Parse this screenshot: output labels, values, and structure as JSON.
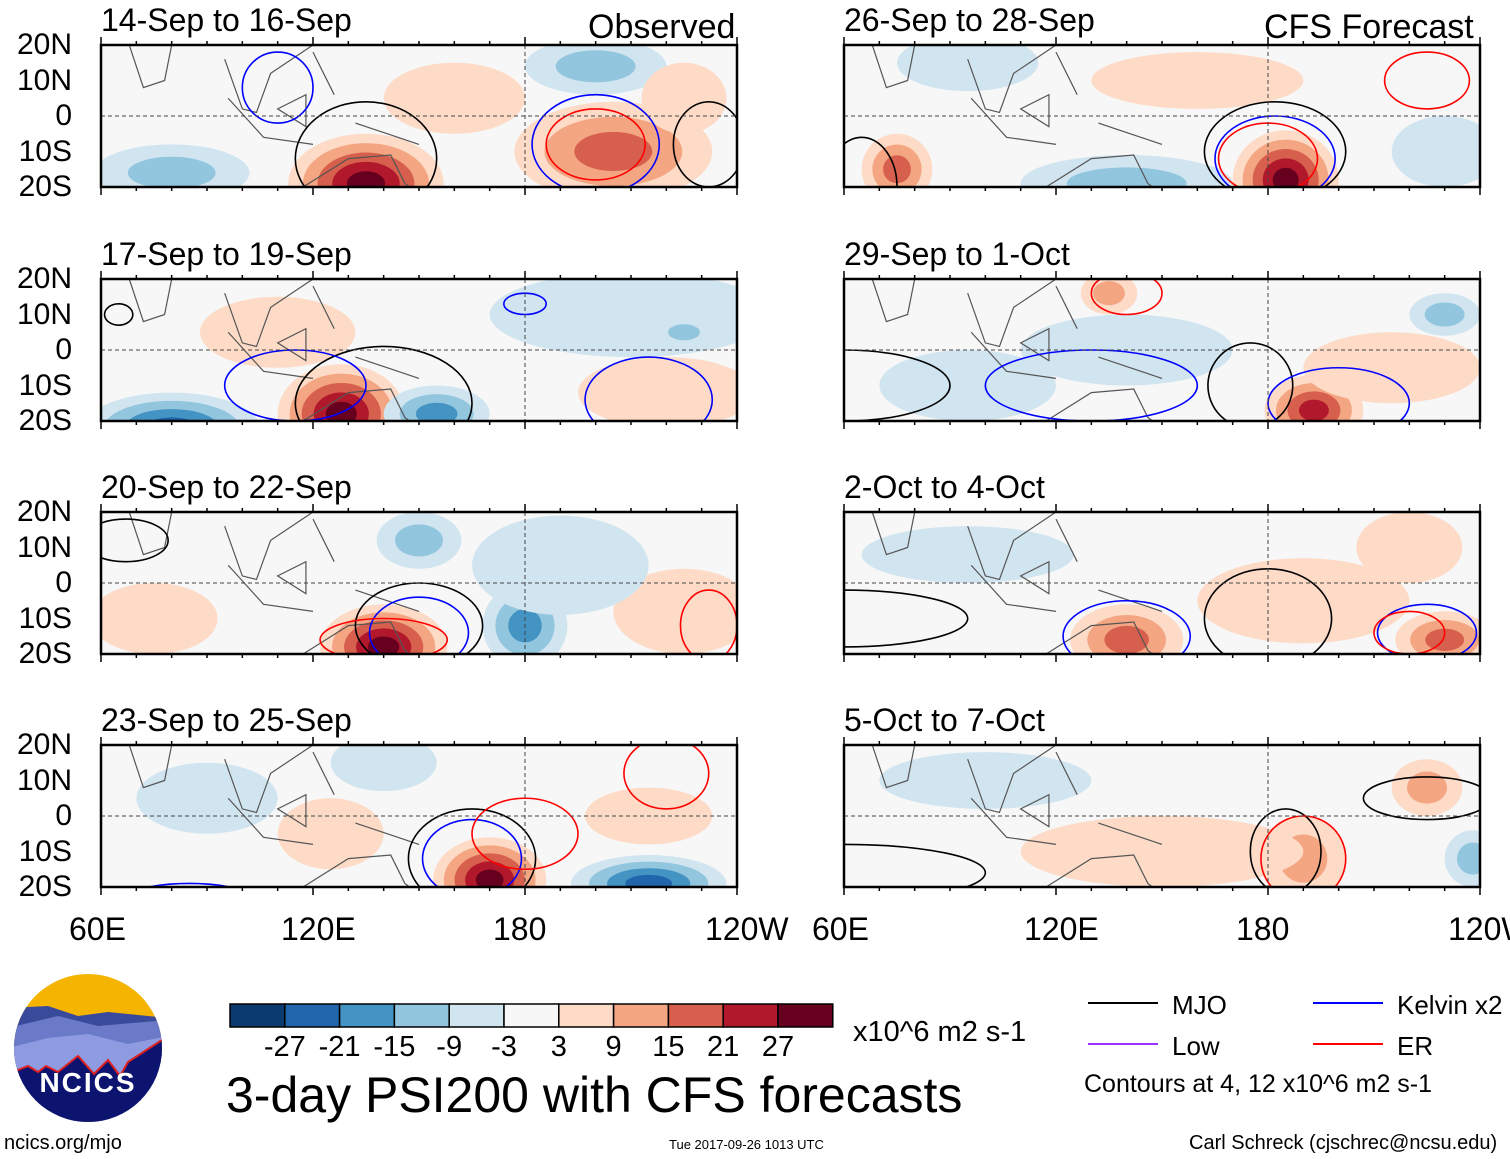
{
  "header": {
    "left_label": "Observed",
    "right_label": "CFS Forecast"
  },
  "chart_data": {
    "type": "heatmap",
    "title": "3-day PSI200 with CFS forecasts",
    "variable_units": "x10^6 m2 s-1",
    "lat_ticks": [
      "20N",
      "10N",
      "0",
      "10S",
      "20S"
    ],
    "lon_ticks": [
      "60E",
      "120E",
      "180",
      "120W"
    ],
    "lon_range": [
      60,
      240
    ],
    "lat_range": [
      -20,
      20
    ],
    "panels": [
      {
        "title": "14-Sep to 16-Sep",
        "column": "Observed"
      },
      {
        "title": "17-Sep to 19-Sep",
        "column": "Observed"
      },
      {
        "title": "20-Sep to 22-Sep",
        "column": "Observed"
      },
      {
        "title": "23-Sep to 25-Sep",
        "column": "Observed"
      },
      {
        "title": "26-Sep to 28-Sep",
        "column": "CFS Forecast"
      },
      {
        "title": "29-Sep to 1-Oct",
        "column": "CFS Forecast"
      },
      {
        "title": "2-Oct to 4-Oct",
        "column": "CFS Forecast"
      },
      {
        "title": "5-Oct to 7-Oct",
        "column": "CFS Forecast"
      }
    ],
    "colorbar": {
      "labels": [
        "-27",
        "-21",
        "-15",
        "-9",
        "-3",
        "3",
        "9",
        "15",
        "21",
        "27"
      ],
      "colors": [
        "#0b3a6e",
        "#2166ac",
        "#4393c3",
        "#92c5de",
        "#d1e5f0",
        "#f7f7f7",
        "#fddbc7",
        "#f4a582",
        "#d6604d",
        "#b2182b",
        "#67001f"
      ]
    },
    "legend": [
      {
        "label": "MJO",
        "color": "#000000"
      },
      {
        "label": "Kelvin x2",
        "color": "#0000ff"
      },
      {
        "label": "Low",
        "color": "#9933ff"
      },
      {
        "label": "ER",
        "color": "#ff0000"
      }
    ],
    "contour_note": "Contours at 4, 12 x10^6 m2 s-1"
  },
  "footer": {
    "logo_text": "NCICS",
    "url": "ncics.org/mjo",
    "timestamp": "Tue 2017-09-26 1013 UTC",
    "credit": "Carl Schreck (cjschrec@ncsu.edu)"
  }
}
